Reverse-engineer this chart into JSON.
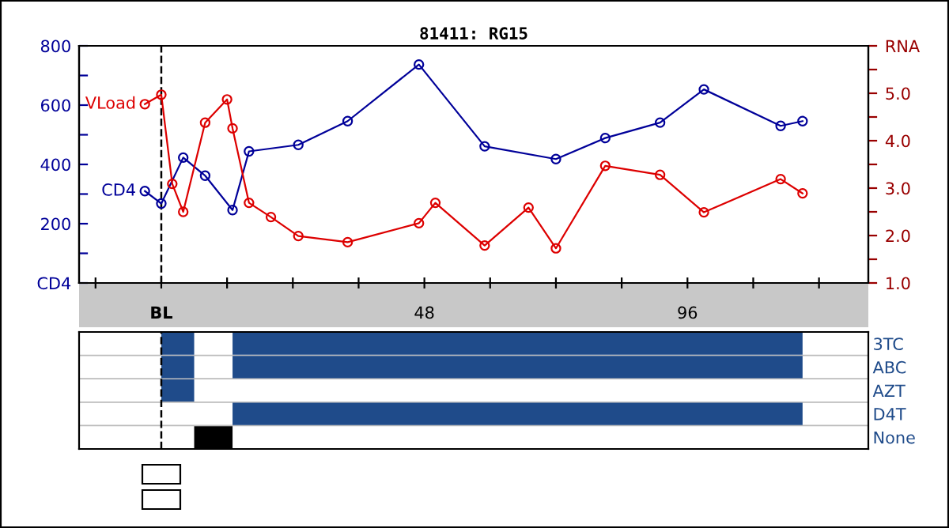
{
  "chart_data": [
    {
      "type": "line",
      "title": "81411: RG15",
      "xlim": [
        -15,
        129
      ],
      "xticks": [
        {
          "value": -12,
          "label": null
        },
        {
          "value": 0,
          "label": "BL"
        },
        {
          "value": 12,
          "label": null
        },
        {
          "value": 24,
          "label": null
        },
        {
          "value": 36,
          "label": null
        },
        48,
        {
          "value": 60,
          "label": null
        },
        {
          "value": 72,
          "label": null
        },
        {
          "value": 84,
          "label": null
        },
        96,
        {
          "value": 108,
          "label": null
        },
        {
          "value": 120,
          "label": null
        }
      ],
      "ylim": [
        0,
        800
      ],
      "yticks": [
        {
          "value": 0,
          "label": "CD4"
        },
        {
          "value": 100,
          "label": null
        },
        200,
        {
          "value": 300,
          "label": null
        },
        400,
        {
          "value": 500,
          "label": null
        },
        600,
        {
          "value": 700,
          "label": null
        },
        800
      ],
      "y2lim": [
        1.0,
        6.0
      ],
      "y2ticks": [
        {
          "value": 1.0,
          "label": "1.0"
        },
        {
          "value": 1.5,
          "label": null
        },
        {
          "value": 2.0,
          "label": "2.0"
        },
        {
          "value": 2.5,
          "label": null
        },
        {
          "value": 3.0,
          "label": "3.0"
        },
        {
          "value": 3.5,
          "label": null
        },
        {
          "value": 4.0,
          "label": "4.0"
        },
        {
          "value": 4.5,
          "label": null
        },
        {
          "value": 5.0,
          "label": "5.0"
        },
        {
          "value": 5.5,
          "label": null
        },
        {
          "value": 6.0,
          "label": "RNA"
        }
      ],
      "marker": "circle",
      "grid": false,
      "legend": false,
      "ref_lines": [
        {
          "axis": "x",
          "value": 0,
          "line_style": "dashed",
          "color": "#000000"
        }
      ],
      "series": [
        {
          "name": "CD4",
          "color": "#000099",
          "x": [
            -3,
            0,
            4,
            8,
            13,
            16,
            25,
            34,
            47,
            59,
            72,
            81,
            91,
            99,
            113,
            117
          ],
          "values": [
            310,
            268,
            423,
            362,
            246,
            444,
            466,
            546,
            737,
            461,
            418,
            489,
            541,
            653,
            530,
            546
          ]
        },
        {
          "name": "VLoad",
          "color": "#dd0000",
          "axis": "y2",
          "x": [
            -3,
            0,
            2,
            4,
            8,
            12,
            13,
            16,
            20,
            25,
            34,
            47,
            50,
            59,
            67,
            72,
            81,
            91,
            99,
            113,
            117
          ],
          "values": [
            4.77,
            4.97,
            3.09,
            2.5,
            4.38,
            4.87,
            4.26,
            2.69,
            2.39,
            1.99,
            1.86,
            2.26,
            2.69,
            1.79,
            2.59,
            1.73,
            3.47,
            3.28,
            2.49,
            3.19,
            2.89
          ]
        }
      ]
    },
    {
      "type": "bar",
      "orientation": "horizontal",
      "tick_labels": "y",
      "xlim": [
        -15,
        129
      ],
      "categories": [
        "3TC",
        "ABC",
        "AZT",
        "D4T",
        "None"
      ],
      "ref_lines": [
        {
          "axis": "x",
          "value": 0,
          "line_style": "dashed",
          "color": "#000000"
        }
      ],
      "series": [
        {
          "color": "#1f4b8a",
          "base": [
            0,
            0,
            0,
            null,
            null
          ],
          "values": [
            6,
            6,
            6,
            null,
            null
          ]
        },
        {
          "color": "#1f4b8a",
          "base": [
            13,
            13,
            null,
            13,
            null
          ],
          "values": [
            104,
            104,
            null,
            104,
            null
          ]
        },
        {
          "color": "#000000",
          "base": [
            null,
            null,
            null,
            null,
            6
          ],
          "values": [
            null,
            null,
            null,
            null,
            7
          ]
        }
      ]
    }
  ]
}
